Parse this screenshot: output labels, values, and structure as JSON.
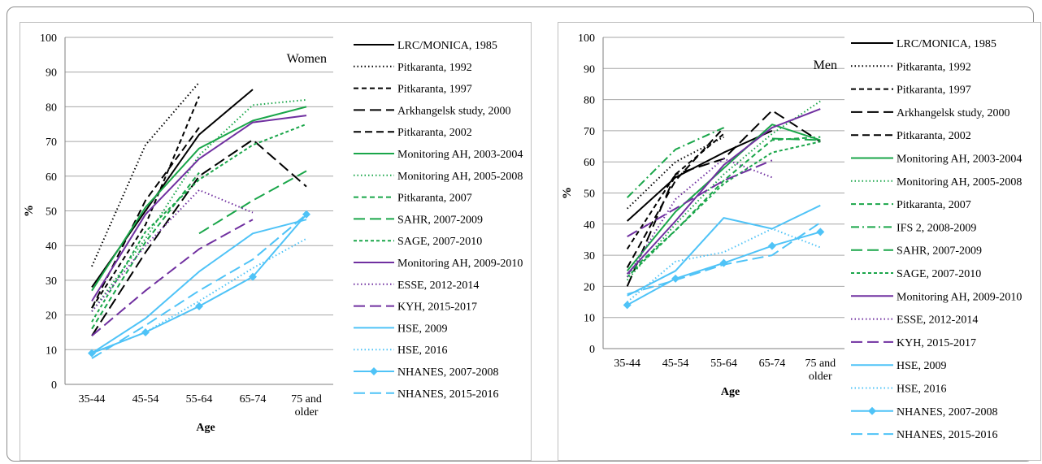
{
  "chart_data": [
    {
      "type": "line",
      "title": "Women",
      "xlabel": "Age",
      "ylabel": "%",
      "ylim": [
        0,
        100
      ],
      "yticks": [
        0,
        10,
        20,
        30,
        40,
        50,
        60,
        70,
        80,
        90,
        100
      ],
      "categories": [
        "35-44",
        "45-54",
        "55-64",
        "65-74",
        "75 and older"
      ],
      "grid": "horizontal",
      "legend_position": "right",
      "series": [
        {
          "name": "LRC/MONICA, 1985",
          "color": "#000000",
          "dash": "solid",
          "values": [
            28,
            50,
            72,
            85,
            null
          ]
        },
        {
          "name": "Pitkaranta, 1992",
          "color": "#000000",
          "dash": "dotted",
          "values": [
            34,
            69,
            87,
            null,
            null
          ]
        },
        {
          "name": "Pitkaranta, 1997",
          "color": "#000000",
          "dash": "dash",
          "values": [
            22,
            46,
            83,
            null,
            null
          ]
        },
        {
          "name": "Arkhangelsk study, 2000",
          "color": "#000000",
          "dash": "longdash",
          "values": [
            14,
            38,
            60,
            70.5,
            57
          ]
        },
        {
          "name": "Pitkaranta, 2002",
          "color": "#000000",
          "dash": "mediumdash",
          "values": [
            22,
            53,
            74,
            null,
            null
          ]
        },
        {
          "name": "Monitoring AH, 2003-2004",
          "color": "#1aa64a",
          "dash": "solid",
          "values": [
            27,
            51,
            68,
            76,
            80
          ]
        },
        {
          "name": "Monitoring AH, 2005-2008",
          "color": "#1aa64a",
          "dash": "dotted",
          "values": [
            21,
            42,
            66,
            80.5,
            82
          ]
        },
        {
          "name": "Pitkaranta, 2007",
          "color": "#1aa64a",
          "dash": "dash",
          "values": [
            16,
            41,
            61,
            null,
            null
          ]
        },
        {
          "name": "SAHR, 2007-2009",
          "color": "#1aa64a",
          "dash": "longdash",
          "values": [
            null,
            null,
            43.5,
            53,
            61.5
          ]
        },
        {
          "name": "SAGE, 2007-2010",
          "color": "#1aa64a",
          "dash": "shortdash",
          "values": [
            18,
            44,
            59,
            69,
            75
          ]
        },
        {
          "name": "Monitoring AH, 2009-2010",
          "color": "#7030a0",
          "dash": "solid",
          "values": [
            24,
            49,
            65,
            75.5,
            77.5
          ]
        },
        {
          "name": "ESSE, 2012-2014",
          "color": "#7030a0",
          "dash": "dotted",
          "values": [
            21,
            40,
            56,
            49.5,
            null
          ]
        },
        {
          "name": "KYH, 2015-2017",
          "color": "#7030a0",
          "dash": "longdash",
          "values": [
            14,
            27,
            39,
            47.5,
            null
          ]
        },
        {
          "name": "HSE, 2009",
          "color": "#4fc3f7",
          "dash": "solid",
          "values": [
            9,
            19,
            32.5,
            43.5,
            47.5
          ]
        },
        {
          "name": "HSE, 2016",
          "color": "#4fc3f7",
          "dash": "dotted",
          "values": [
            9,
            15,
            24,
            33.5,
            42
          ]
        },
        {
          "name": "NHANES, 2007-2008",
          "color": "#4fc3f7",
          "dash": "solid",
          "marker": "diamond",
          "values": [
            9,
            15,
            22.5,
            31,
            49
          ]
        },
        {
          "name": "NHANES, 2015-2016",
          "color": "#4fc3f7",
          "dash": "longdash",
          "values": [
            7.5,
            17,
            27,
            36,
            49
          ]
        }
      ]
    },
    {
      "type": "line",
      "title": "Men",
      "xlabel": "Age",
      "ylabel": "%",
      "ylim": [
        0,
        100
      ],
      "yticks": [
        0,
        10,
        20,
        30,
        40,
        50,
        60,
        70,
        80,
        90,
        100
      ],
      "categories": [
        "35-44",
        "45-54",
        "55-64",
        "65-74",
        "75 and older"
      ],
      "grid": "horizontal",
      "legend_position": "right",
      "series": [
        {
          "name": "LRC/MONICA, 1985",
          "color": "#000000",
          "dash": "solid",
          "values": [
            41,
            55,
            63,
            70,
            null
          ]
        },
        {
          "name": "Pitkaranta, 1992",
          "color": "#000000",
          "dash": "dotted",
          "values": [
            45,
            60,
            68,
            null,
            null
          ]
        },
        {
          "name": "Pitkaranta, 1997",
          "color": "#000000",
          "dash": "dash",
          "values": [
            32,
            56,
            69,
            null,
            null
          ]
        },
        {
          "name": "Arkhangelsk study, 2000",
          "color": "#000000",
          "dash": "longdash",
          "values": [
            20,
            56,
            61,
            76.5,
            66.5
          ]
        },
        {
          "name": "Pitkaranta, 2002",
          "color": "#000000",
          "dash": "mediumdash",
          "values": [
            26,
            54,
            71,
            null,
            null
          ]
        },
        {
          "name": "Monitoring AH, 2003-2004",
          "color": "#1aa64a",
          "dash": "solid",
          "values": [
            25,
            44,
            58,
            72,
            67
          ]
        },
        {
          "name": "Monitoring AH, 2005-2008",
          "color": "#1aa64a",
          "dash": "dotted",
          "values": [
            22,
            40,
            56,
            69,
            79.5
          ]
        },
        {
          "name": "Pitkaranta, 2007",
          "color": "#1aa64a",
          "dash": "dash",
          "values": [
            24,
            38,
            54,
            67,
            68
          ]
        },
        {
          "name": "IFS 2, 2008-2009",
          "color": "#1aa64a",
          "dash": "dashdot",
          "values": [
            48.5,
            64,
            71,
            null,
            null
          ]
        },
        {
          "name": "SAHR, 2007-2009",
          "color": "#1aa64a",
          "dash": "longdash",
          "values": [
            null,
            null,
            null,
            67.5,
            67
          ]
        },
        {
          "name": "SAGE, 2007-2010",
          "color": "#1aa64a",
          "dash": "shortdash",
          "values": [
            23,
            38,
            53,
            63,
            66.5
          ]
        },
        {
          "name": "Monitoring AH, 2009-2010",
          "color": "#7030a0",
          "dash": "solid",
          "values": [
            24,
            41,
            59,
            71,
            77
          ]
        },
        {
          "name": "ESSE, 2012-2014",
          "color": "#7030a0",
          "dash": "dotted",
          "values": [
            23,
            48,
            61,
            55,
            null
          ]
        },
        {
          "name": "KYH, 2015-2017",
          "color": "#7030a0",
          "dash": "longdash",
          "values": [
            36,
            45,
            54,
            60.5,
            null
          ]
        },
        {
          "name": "HSE, 2009",
          "color": "#4fc3f7",
          "dash": "solid",
          "values": [
            17,
            25,
            42,
            38.5,
            46
          ]
        },
        {
          "name": "HSE, 2016",
          "color": "#4fc3f7",
          "dash": "dotted",
          "values": [
            15,
            28,
            31,
            38.5,
            32.5
          ]
        },
        {
          "name": "NHANES, 2007-2008",
          "color": "#4fc3f7",
          "dash": "solid",
          "marker": "diamond",
          "values": [
            14,
            22.5,
            27.5,
            33,
            37.5
          ]
        },
        {
          "name": "NHANES, 2015-2016",
          "color": "#4fc3f7",
          "dash": "longdash",
          "values": [
            17.5,
            22,
            27,
            30,
            40.5
          ]
        }
      ]
    }
  ]
}
